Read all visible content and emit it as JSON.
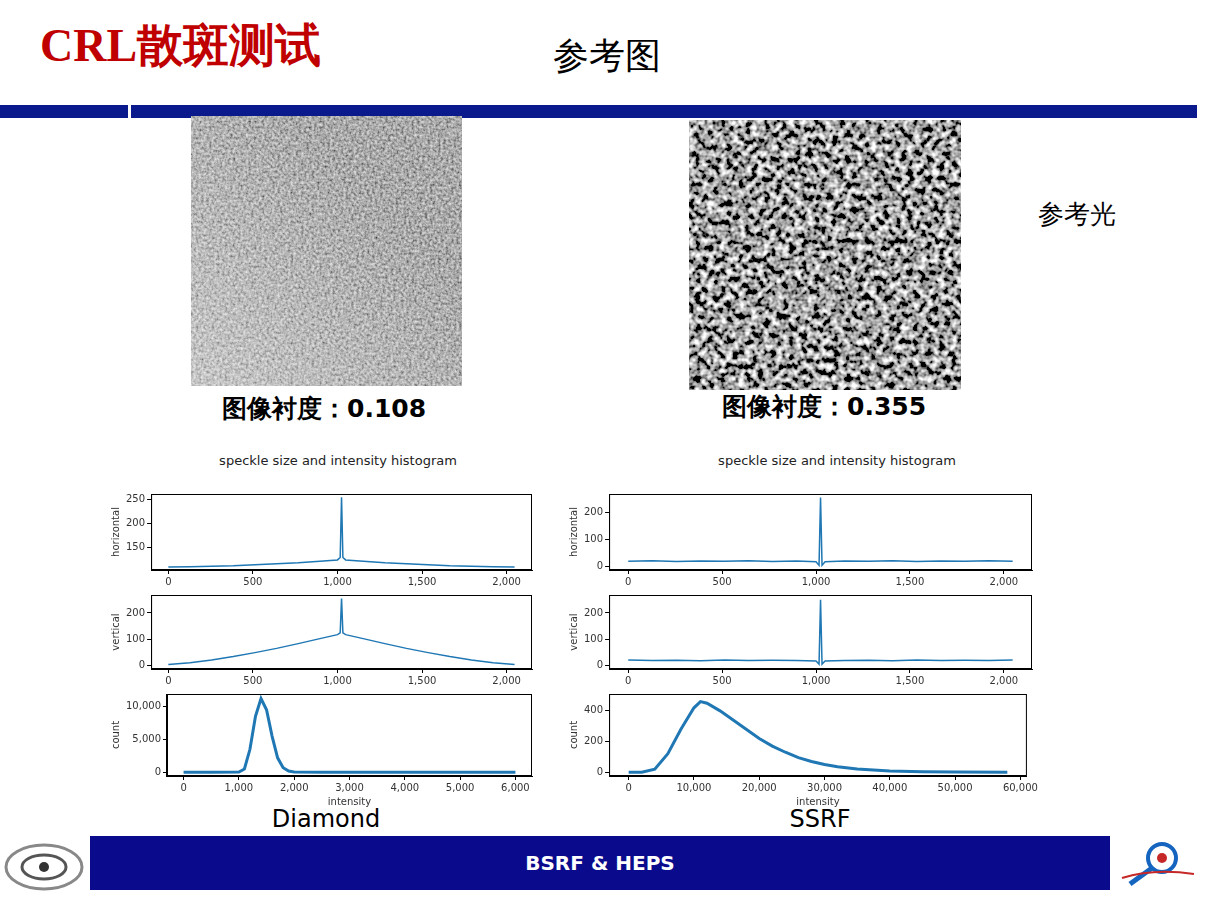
{
  "slide": {
    "title": "CRL散斑测试",
    "heading": "参考图",
    "side_label": "参考光",
    "footer": "BSRF & HEPS",
    "panels": [
      {
        "name": "Diamond",
        "contrast_label": "图像衬度：0.108",
        "subtitle": "speckle size and intensity histogram"
      },
      {
        "name": "SSRF",
        "contrast_label": "图像衬度：0.355",
        "subtitle": "speckle size and intensity histogram"
      }
    ]
  },
  "chart_data": [
    {
      "type": "line",
      "y_label": "horizontal",
      "color": "#1f77b4",
      "grid": false,
      "x": [
        0,
        128,
        256,
        384,
        512,
        640,
        768,
        896,
        1000,
        1016,
        1024,
        1032,
        1048,
        1152,
        1280,
        1408,
        1536,
        1664,
        1792,
        1920,
        2047
      ],
      "values": [
        110,
        111,
        112,
        113,
        115,
        117,
        119,
        122,
        125,
        130,
        255,
        130,
        125,
        122,
        119,
        117,
        115,
        113,
        112,
        111,
        110
      ],
      "xlim": [
        -102,
        2150
      ],
      "xticks": [
        0,
        500,
        1000,
        1500,
        2000
      ],
      "ylim": [
        104,
        262
      ],
      "yticks": [
        150,
        200,
        250
      ]
    },
    {
      "type": "line",
      "y_label": "vertical",
      "color": "#1f77b4",
      "grid": false,
      "x": [
        0,
        128,
        256,
        384,
        512,
        640,
        768,
        896,
        1000,
        1016,
        1024,
        1032,
        1048,
        1152,
        1280,
        1408,
        1536,
        1664,
        1792,
        1920,
        2047
      ],
      "values": [
        5,
        12,
        22,
        35,
        50,
        66,
        84,
        103,
        118,
        125,
        255,
        125,
        118,
        103,
        84,
        66,
        50,
        35,
        22,
        12,
        5
      ],
      "xlim": [
        -102,
        2150
      ],
      "xticks": [
        0,
        500,
        1000,
        1500,
        2000
      ],
      "ylim": [
        -12,
        268
      ],
      "yticks": [
        0,
        100,
        200
      ]
    },
    {
      "type": "line",
      "y_label": "count",
      "x_label": "intensity",
      "color": "#1f77b4",
      "grid": false,
      "x": [
        0,
        500,
        1000,
        1100,
        1200,
        1300,
        1400,
        1500,
        1600,
        1700,
        1800,
        1900,
        2000,
        2500,
        3000,
        4000,
        5000,
        6000
      ],
      "values": [
        0,
        0,
        50,
        500,
        3500,
        8500,
        11200,
        9500,
        5500,
        2200,
        700,
        200,
        60,
        10,
        0,
        0,
        0,
        0
      ],
      "xlim": [
        -300,
        6300
      ],
      "xticks": [
        0,
        1000,
        2000,
        3000,
        4000,
        5000,
        6000
      ],
      "ylim": [
        -560,
        11900
      ],
      "yticks": [
        0,
        5000,
        10000
      ]
    },
    {
      "type": "line",
      "y_label": "horizontal",
      "color": "#1f77b4",
      "grid": false,
      "x": [
        0,
        128,
        256,
        384,
        512,
        640,
        768,
        896,
        1000,
        1016,
        1024,
        1032,
        1048,
        1152,
        1280,
        1408,
        1536,
        1664,
        1792,
        1920,
        2047
      ],
      "values": [
        20,
        22,
        19,
        21,
        20,
        22,
        19,
        21,
        18,
        5,
        255,
        5,
        18,
        21,
        20,
        22,
        19,
        21,
        20,
        22,
        20
      ],
      "xlim": [
        -102,
        2150
      ],
      "xticks": [
        0,
        500,
        1000,
        1500,
        2000
      ],
      "ylim": [
        -12,
        268
      ],
      "yticks": [
        0,
        100,
        200
      ]
    },
    {
      "type": "line",
      "y_label": "vertical",
      "color": "#1f77b4",
      "grid": false,
      "x": [
        0,
        128,
        256,
        384,
        512,
        640,
        768,
        896,
        1000,
        1016,
        1024,
        1032,
        1048,
        1152,
        1280,
        1408,
        1536,
        1664,
        1792,
        1920,
        2047
      ],
      "values": [
        22,
        20,
        21,
        19,
        22,
        20,
        21,
        20,
        18,
        6,
        250,
        6,
        18,
        20,
        21,
        19,
        22,
        20,
        21,
        20,
        22
      ],
      "xlim": [
        -102,
        2150
      ],
      "xticks": [
        0,
        500,
        1000,
        1500,
        2000
      ],
      "ylim": [
        -12,
        268
      ],
      "yticks": [
        0,
        100,
        200
      ]
    },
    {
      "type": "line",
      "y_label": "count",
      "x_label": "intensity",
      "color": "#1f77b4",
      "grid": false,
      "x": [
        0,
        2000,
        4000,
        6000,
        8000,
        10000,
        11000,
        12000,
        14000,
        16000,
        18000,
        20000,
        22000,
        24000,
        26000,
        28000,
        30000,
        32000,
        35000,
        40000,
        45000,
        50000,
        58000
      ],
      "values": [
        0,
        0,
        20,
        120,
        280,
        420,
        460,
        450,
        400,
        340,
        280,
        220,
        170,
        130,
        95,
        70,
        50,
        35,
        20,
        8,
        3,
        1,
        0
      ],
      "xlim": [
        -3000,
        61000
      ],
      "xticks": [
        0,
        10000,
        20000,
        30000,
        40000,
        50000,
        60000
      ],
      "ylim": [
        -25,
        510
      ],
      "yticks": [
        0,
        200,
        400
      ]
    }
  ]
}
